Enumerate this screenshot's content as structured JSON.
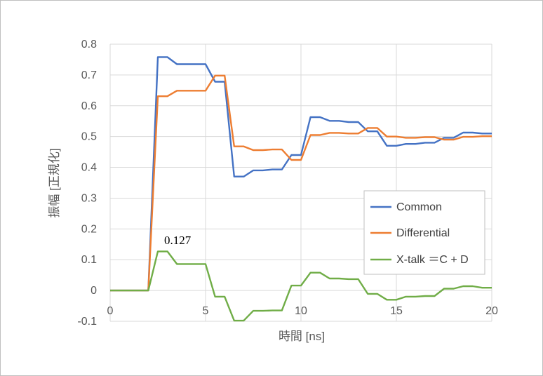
{
  "chart_data": {
    "type": "line",
    "xlabel": "時間 [ns]",
    "ylabel": "振幅 [正規化]",
    "xlim": [
      0,
      20
    ],
    "ylim": [
      -0.1,
      0.8
    ],
    "x_ticks": [
      "0",
      "5",
      "10",
      "15",
      "20"
    ],
    "y_ticks": [
      "-0.1",
      "0",
      "0.1",
      "0.2",
      "0.3",
      "0.4",
      "0.5",
      "0.6",
      "0.7",
      "0.8"
    ],
    "grid": "vertical and horizontal",
    "legend_position": "lower-right",
    "annotation": "0.127",
    "series": [
      {
        "name": "Common",
        "color": "#4472C4",
        "points": [
          [
            0,
            0
          ],
          [
            2,
            0
          ],
          [
            2.5,
            0.758
          ],
          [
            3,
            0.758
          ],
          [
            3.5,
            0.735
          ],
          [
            4,
            0.735
          ],
          [
            4.5,
            0.735
          ],
          [
            5,
            0.735
          ],
          [
            5.5,
            0.678
          ],
          [
            6,
            0.678
          ],
          [
            6.5,
            0.37
          ],
          [
            7,
            0.37
          ],
          [
            7.5,
            0.39
          ],
          [
            8,
            0.39
          ],
          [
            8.5,
            0.393
          ],
          [
            9,
            0.393
          ],
          [
            9.5,
            0.44
          ],
          [
            10,
            0.44
          ],
          [
            10.5,
            0.563
          ],
          [
            11,
            0.563
          ],
          [
            11.5,
            0.551
          ],
          [
            12,
            0.551
          ],
          [
            12.5,
            0.547
          ],
          [
            13,
            0.547
          ],
          [
            13.5,
            0.517
          ],
          [
            14,
            0.517
          ],
          [
            14.5,
            0.47
          ],
          [
            15,
            0.47
          ],
          [
            15.5,
            0.476
          ],
          [
            16,
            0.476
          ],
          [
            16.5,
            0.48
          ],
          [
            17,
            0.48
          ],
          [
            17.5,
            0.496
          ],
          [
            18,
            0.496
          ],
          [
            18.5,
            0.513
          ],
          [
            19,
            0.513
          ],
          [
            19.5,
            0.51
          ],
          [
            20,
            0.51
          ]
        ]
      },
      {
        "name": "Differential",
        "color": "#ED7D31",
        "points": [
          [
            0,
            0
          ],
          [
            2,
            0
          ],
          [
            2.5,
            0.631
          ],
          [
            3,
            0.631
          ],
          [
            3.5,
            0.649
          ],
          [
            4,
            0.649
          ],
          [
            4.5,
            0.649
          ],
          [
            5,
            0.649
          ],
          [
            5.5,
            0.698
          ],
          [
            6,
            0.698
          ],
          [
            6.5,
            0.468
          ],
          [
            7,
            0.468
          ],
          [
            7.5,
            0.456
          ],
          [
            8,
            0.456
          ],
          [
            8.5,
            0.458
          ],
          [
            9,
            0.458
          ],
          [
            9.5,
            0.424
          ],
          [
            10,
            0.424
          ],
          [
            10.5,
            0.505
          ],
          [
            11,
            0.505
          ],
          [
            11.5,
            0.512
          ],
          [
            12,
            0.512
          ],
          [
            12.5,
            0.51
          ],
          [
            13,
            0.51
          ],
          [
            13.5,
            0.528
          ],
          [
            14,
            0.528
          ],
          [
            14.5,
            0.5
          ],
          [
            15,
            0.5
          ],
          [
            15.5,
            0.496
          ],
          [
            16,
            0.496
          ],
          [
            16.5,
            0.498
          ],
          [
            17,
            0.498
          ],
          [
            17.5,
            0.49
          ],
          [
            18,
            0.49
          ],
          [
            18.5,
            0.499
          ],
          [
            19,
            0.499
          ],
          [
            19.5,
            0.501
          ],
          [
            20,
            0.501
          ]
        ]
      },
      {
        "name": "X-talk  ＝C + D",
        "color": "#70AD47",
        "points": [
          [
            0,
            0
          ],
          [
            2,
            0
          ],
          [
            2.5,
            0.127
          ],
          [
            3,
            0.127
          ],
          [
            3.5,
            0.086
          ],
          [
            4,
            0.086
          ],
          [
            4.5,
            0.086
          ],
          [
            5,
            0.086
          ],
          [
            5.5,
            -0.02
          ],
          [
            6,
            -0.02
          ],
          [
            6.5,
            -0.098
          ],
          [
            7,
            -0.098
          ],
          [
            7.5,
            -0.066
          ],
          [
            8,
            -0.066
          ],
          [
            8.5,
            -0.065
          ],
          [
            9,
            -0.065
          ],
          [
            9.5,
            0.016
          ],
          [
            10,
            0.016
          ],
          [
            10.5,
            0.058
          ],
          [
            11,
            0.058
          ],
          [
            11.5,
            0.039
          ],
          [
            12,
            0.039
          ],
          [
            12.5,
            0.037
          ],
          [
            13,
            0.037
          ],
          [
            13.5,
            -0.011
          ],
          [
            14,
            -0.011
          ],
          [
            14.5,
            -0.03
          ],
          [
            15,
            -0.03
          ],
          [
            15.5,
            -0.02
          ],
          [
            16,
            -0.02
          ],
          [
            16.5,
            -0.018
          ],
          [
            17,
            -0.018
          ],
          [
            17.5,
            0.006
          ],
          [
            18,
            0.006
          ],
          [
            18.5,
            0.014
          ],
          [
            19,
            0.014
          ],
          [
            19.5,
            0.009
          ],
          [
            20,
            0.009
          ]
        ]
      }
    ]
  }
}
